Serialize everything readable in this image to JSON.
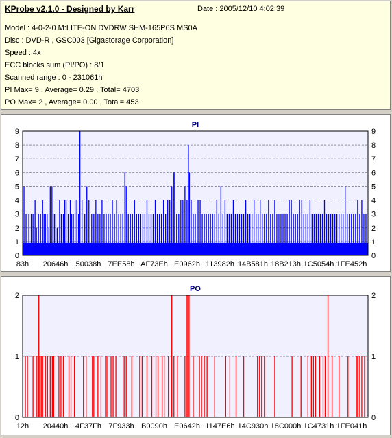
{
  "header": {
    "title": "KProbe v2.1.0 - Designed by Karr",
    "date": "Date : 2005/12/10 4:02:39",
    "lines": [
      "Model : 4-0-2-0 M:LITE-ON DVDRW SHM-165P6S MS0A",
      "Disc : DVD-R , GSC003 [Gigastorage Corporation]",
      "Speed : 4x",
      "ECC blocks sum (PI/PO) : 8/1",
      "Scanned range : 0 - 231061h",
      "PI Max= 9 , Average= 0.29 , Total= 4703",
      "PO Max= 2 , Average= 0.00 , Total= 453"
    ]
  },
  "colors": {
    "pi": "#0000ff",
    "po": "#ff0000",
    "plot_bg": "#f0f0ff",
    "info_bg": "#ffffe1"
  },
  "chart_data": [
    {
      "type": "bar",
      "title": "PI",
      "ylim": [
        0,
        9
      ],
      "yticks": [
        0,
        1,
        2,
        3,
        4,
        5,
        6,
        7,
        8,
        9
      ],
      "xticklabels": [
        "83h",
        "20646h",
        "50038h",
        "7EE58h",
        "AF73Eh",
        "E0962h",
        "113982h",
        "14B581h",
        "18B213h",
        "1C5054h",
        "1FE452h"
      ],
      "grid": true,
      "spikes": [
        [
          0.004,
          5
        ],
        [
          0.01,
          3
        ],
        [
          0.018,
          3
        ],
        [
          0.025,
          3
        ],
        [
          0.03,
          3
        ],
        [
          0.036,
          4
        ],
        [
          0.04,
          2
        ],
        [
          0.046,
          3
        ],
        [
          0.052,
          3
        ],
        [
          0.058,
          4
        ],
        [
          0.062,
          3
        ],
        [
          0.066,
          3
        ],
        [
          0.071,
          3
        ],
        [
          0.076,
          2
        ],
        [
          0.08,
          5
        ],
        [
          0.085,
          5
        ],
        [
          0.092,
          3
        ],
        [
          0.096,
          3
        ],
        [
          0.1,
          2
        ],
        [
          0.107,
          4
        ],
        [
          0.112,
          3
        ],
        [
          0.118,
          3
        ],
        [
          0.122,
          4
        ],
        [
          0.126,
          4
        ],
        [
          0.132,
          3
        ],
        [
          0.138,
          4
        ],
        [
          0.142,
          3
        ],
        [
          0.147,
          3
        ],
        [
          0.152,
          4
        ],
        [
          0.157,
          4
        ],
        [
          0.162,
          3
        ],
        [
          0.166,
          9
        ],
        [
          0.172,
          4
        ],
        [
          0.18,
          3
        ],
        [
          0.186,
          5
        ],
        [
          0.192,
          4
        ],
        [
          0.2,
          3
        ],
        [
          0.206,
          3
        ],
        [
          0.212,
          4
        ],
        [
          0.218,
          3
        ],
        [
          0.224,
          3
        ],
        [
          0.23,
          4
        ],
        [
          0.236,
          3
        ],
        [
          0.242,
          3
        ],
        [
          0.248,
          3
        ],
        [
          0.254,
          3
        ],
        [
          0.26,
          4
        ],
        [
          0.266,
          3
        ],
        [
          0.272,
          4
        ],
        [
          0.278,
          3
        ],
        [
          0.284,
          3
        ],
        [
          0.29,
          3
        ],
        [
          0.296,
          6
        ],
        [
          0.3,
          5
        ],
        [
          0.306,
          3
        ],
        [
          0.312,
          3
        ],
        [
          0.318,
          3
        ],
        [
          0.324,
          4
        ],
        [
          0.33,
          3
        ],
        [
          0.336,
          3
        ],
        [
          0.342,
          3
        ],
        [
          0.348,
          3
        ],
        [
          0.354,
          3
        ],
        [
          0.36,
          4
        ],
        [
          0.366,
          3
        ],
        [
          0.372,
          3
        ],
        [
          0.378,
          3
        ],
        [
          0.384,
          4
        ],
        [
          0.39,
          3
        ],
        [
          0.396,
          3
        ],
        [
          0.402,
          3
        ],
        [
          0.408,
          4
        ],
        [
          0.414,
          3
        ],
        [
          0.42,
          4
        ],
        [
          0.426,
          4
        ],
        [
          0.432,
          5
        ],
        [
          0.438,
          6
        ],
        [
          0.441,
          6
        ],
        [
          0.446,
          3
        ],
        [
          0.452,
          3
        ],
        [
          0.458,
          4
        ],
        [
          0.464,
          4
        ],
        [
          0.47,
          5
        ],
        [
          0.476,
          4
        ],
        [
          0.48,
          8
        ],
        [
          0.483,
          6
        ],
        [
          0.488,
          4
        ],
        [
          0.494,
          3
        ],
        [
          0.5,
          3
        ],
        [
          0.508,
          4
        ],
        [
          0.514,
          4
        ],
        [
          0.52,
          3
        ],
        [
          0.526,
          3
        ],
        [
          0.532,
          3
        ],
        [
          0.538,
          3
        ],
        [
          0.544,
          3
        ],
        [
          0.55,
          3
        ],
        [
          0.556,
          3
        ],
        [
          0.562,
          4
        ],
        [
          0.568,
          3
        ],
        [
          0.574,
          5
        ],
        [
          0.58,
          3
        ],
        [
          0.586,
          4
        ],
        [
          0.592,
          3
        ],
        [
          0.598,
          3
        ],
        [
          0.604,
          3
        ],
        [
          0.61,
          4
        ],
        [
          0.616,
          3
        ],
        [
          0.622,
          3
        ],
        [
          0.628,
          3
        ],
        [
          0.634,
          3
        ],
        [
          0.64,
          3
        ],
        [
          0.646,
          4
        ],
        [
          0.652,
          3
        ],
        [
          0.658,
          3
        ],
        [
          0.664,
          3
        ],
        [
          0.67,
          4
        ],
        [
          0.676,
          3
        ],
        [
          0.682,
          3
        ],
        [
          0.688,
          4
        ],
        [
          0.694,
          3
        ],
        [
          0.7,
          3
        ],
        [
          0.706,
          3
        ],
        [
          0.712,
          4
        ],
        [
          0.718,
          3
        ],
        [
          0.724,
          3
        ],
        [
          0.73,
          4
        ],
        [
          0.736,
          3
        ],
        [
          0.742,
          3
        ],
        [
          0.748,
          3
        ],
        [
          0.754,
          3
        ],
        [
          0.76,
          3
        ],
        [
          0.766,
          3
        ],
        [
          0.772,
          4
        ],
        [
          0.778,
          4
        ],
        [
          0.784,
          3
        ],
        [
          0.79,
          3
        ],
        [
          0.796,
          3
        ],
        [
          0.802,
          4
        ],
        [
          0.808,
          4
        ],
        [
          0.814,
          3
        ],
        [
          0.82,
          3
        ],
        [
          0.826,
          3
        ],
        [
          0.832,
          4
        ],
        [
          0.838,
          3
        ],
        [
          0.844,
          3
        ],
        [
          0.85,
          3
        ],
        [
          0.856,
          3
        ],
        [
          0.862,
          3
        ],
        [
          0.868,
          3
        ],
        [
          0.874,
          4
        ],
        [
          0.88,
          3
        ],
        [
          0.886,
          3
        ],
        [
          0.892,
          3
        ],
        [
          0.898,
          3
        ],
        [
          0.904,
          3
        ],
        [
          0.91,
          3
        ],
        [
          0.916,
          3
        ],
        [
          0.922,
          3
        ],
        [
          0.928,
          3
        ],
        [
          0.934,
          5
        ],
        [
          0.94,
          3
        ],
        [
          0.946,
          3
        ],
        [
          0.952,
          3
        ],
        [
          0.958,
          3
        ],
        [
          0.964,
          3
        ],
        [
          0.97,
          4
        ],
        [
          0.976,
          3
        ],
        [
          0.982,
          4
        ],
        [
          0.988,
          3
        ],
        [
          0.994,
          3
        ]
      ]
    },
    {
      "type": "bar",
      "title": "PO",
      "ylim": [
        0,
        2
      ],
      "yticks": [
        0,
        1,
        2
      ],
      "xticklabels": [
        "12h",
        "20440h",
        "4F37Fh",
        "7F933h",
        "B0090h",
        "E0642h",
        "1147E6h",
        "14C930h",
        "18C000h",
        "1C4731h",
        "1FE041h"
      ],
      "grid": true,
      "spikes": [
        [
          0.008,
          1
        ],
        [
          0.014,
          1
        ],
        [
          0.03,
          1
        ],
        [
          0.04,
          1
        ],
        [
          0.044,
          1
        ],
        [
          0.047,
          2
        ],
        [
          0.05,
          1
        ],
        [
          0.054,
          1
        ],
        [
          0.058,
          1
        ],
        [
          0.066,
          1
        ],
        [
          0.072,
          1
        ],
        [
          0.08,
          1
        ],
        [
          0.086,
          1
        ],
        [
          0.09,
          1
        ],
        [
          0.105,
          1
        ],
        [
          0.111,
          1
        ],
        [
          0.118,
          1
        ],
        [
          0.134,
          1
        ],
        [
          0.14,
          1
        ],
        [
          0.15,
          1
        ],
        [
          0.176,
          1
        ],
        [
          0.184,
          1
        ],
        [
          0.202,
          1
        ],
        [
          0.206,
          1
        ],
        [
          0.218,
          1
        ],
        [
          0.227,
          1
        ],
        [
          0.24,
          1
        ],
        [
          0.244,
          1
        ],
        [
          0.256,
          1
        ],
        [
          0.262,
          1
        ],
        [
          0.27,
          1
        ],
        [
          0.294,
          1
        ],
        [
          0.3,
          1
        ],
        [
          0.316,
          1
        ],
        [
          0.339,
          1
        ],
        [
          0.346,
          1
        ],
        [
          0.36,
          1
        ],
        [
          0.374,
          1
        ],
        [
          0.386,
          1
        ],
        [
          0.392,
          1
        ],
        [
          0.404,
          1
        ],
        [
          0.41,
          1
        ],
        [
          0.422,
          1
        ],
        [
          0.43,
          2
        ],
        [
          0.432,
          2
        ],
        [
          0.438,
          1
        ],
        [
          0.448,
          1
        ],
        [
          0.47,
          1
        ],
        [
          0.476,
          2
        ],
        [
          0.479,
          2
        ],
        [
          0.482,
          2
        ],
        [
          0.494,
          1
        ],
        [
          0.512,
          1
        ],
        [
          0.518,
          1
        ],
        [
          0.526,
          1
        ],
        [
          0.534,
          1
        ],
        [
          0.556,
          1
        ],
        [
          0.588,
          1
        ],
        [
          0.6,
          1
        ],
        [
          0.618,
          1
        ],
        [
          0.64,
          1
        ],
        [
          0.68,
          1
        ],
        [
          0.686,
          1
        ],
        [
          0.692,
          1
        ],
        [
          0.7,
          1
        ],
        [
          0.73,
          1
        ],
        [
          0.78,
          1
        ],
        [
          0.806,
          1
        ],
        [
          0.826,
          1
        ],
        [
          0.836,
          1
        ],
        [
          0.842,
          1
        ],
        [
          0.848,
          1
        ],
        [
          0.86,
          1
        ],
        [
          0.87,
          1
        ],
        [
          0.876,
          1
        ],
        [
          0.884,
          2
        ],
        [
          0.896,
          1
        ],
        [
          0.916,
          1
        ],
        [
          0.942,
          1
        ],
        [
          0.968,
          1
        ],
        [
          0.971,
          1
        ],
        [
          0.976,
          1
        ],
        [
          0.982,
          1
        ],
        [
          0.99,
          1
        ]
      ]
    }
  ]
}
